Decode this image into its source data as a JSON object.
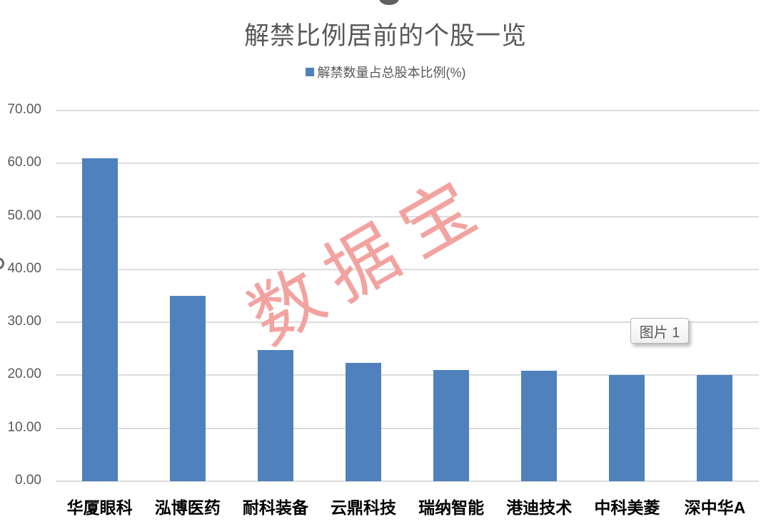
{
  "page": {
    "watermark": "数据宝",
    "floating_label": "图片 1"
  },
  "chart_data": {
    "type": "bar",
    "title": "解禁比例居前的个股一览",
    "legend": [
      "解禁数量占总股本比例(%)"
    ],
    "legend_position": "top",
    "categories": [
      "华厦眼科",
      "泓博医药",
      "耐科装备",
      "云鼎科技",
      "瑞纳智能",
      "港迪技术",
      "中科美菱",
      "深中华A"
    ],
    "values": [
      61.0,
      35.0,
      24.8,
      22.3,
      21.0,
      20.9,
      20.1,
      20.0
    ],
    "xlabel": "",
    "ylabel": "",
    "ylim": [
      0,
      70
    ],
    "ytick_step": 10,
    "ytick_labels": [
      "0.00",
      "10.00",
      "20.00",
      "30.00",
      "40.00",
      "50.00",
      "60.00",
      "70.00"
    ],
    "grid": true,
    "colors": {
      "bar": "#4F81BD",
      "grid": "#dcdcdc",
      "axis_text": "#595959",
      "category_text": "#000000",
      "watermark": "#F2A3A0"
    }
  }
}
